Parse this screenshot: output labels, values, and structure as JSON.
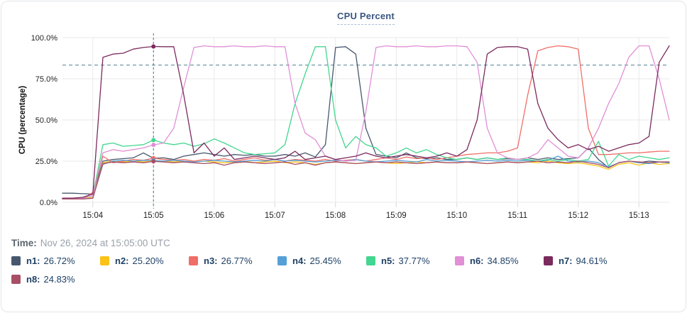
{
  "card": {
    "title": "CPU Percent"
  },
  "time_row": {
    "label": "Time:",
    "value": "Nov 26, 2024 at 15:05:00 UTC"
  },
  "colors": {
    "grid": "#e9e9e9",
    "tick_stub": "#d8d8d8",
    "crosshair": "#4d7d92",
    "threshold": "#4d7d92",
    "axis_text": "#1f1f1f",
    "card_border": "#e3e5e9"
  },
  "chart_data": {
    "type": "line",
    "title": "CPU Percent",
    "xlabel": "",
    "ylabel": "CPU (percentage)",
    "ylim": [
      0,
      100
    ],
    "grid": true,
    "legend_position": "bottom",
    "x_start": "15:03:30",
    "x_step_seconds": 10,
    "x_tick_labels": [
      "15:04",
      "15:05",
      "15:06",
      "15:07",
      "15:08",
      "15:09",
      "15:10",
      "15:11",
      "15:12",
      "15:13"
    ],
    "x_tick_indices": [
      3,
      9,
      15,
      21,
      27,
      33,
      39,
      45,
      51,
      57
    ],
    "y_tick_values": [
      0,
      25,
      50,
      75,
      100
    ],
    "y_tick_labels": [
      "0.0%",
      "25.0%",
      "50.0%",
      "75.0%",
      "100.0%"
    ],
    "threshold_value": 83.3,
    "crosshair_time": "15:05:00",
    "crosshair_index": 9,
    "series": [
      {
        "name": "n1",
        "color": "#47586e",
        "legend_value": "26.72%",
        "values": [
          5.5,
          5.5,
          5.2,
          5.0,
          25.0,
          26.0,
          26.5,
          27.0,
          30.0,
          26.72,
          27.0,
          26.0,
          28.0,
          29.0,
          30.0,
          29.0,
          28.0,
          29.0,
          28.5,
          29.0,
          28.0,
          28.0,
          29.0,
          28.0,
          30.0,
          27.5,
          35.0,
          94.0,
          94.5,
          90.0,
          45.0,
          29.0,
          28.0,
          27.0,
          30.0,
          27.0,
          26.5,
          27.0,
          26.0,
          26.0,
          27.0,
          26.0,
          27.0,
          26.0,
          26.5,
          26.0,
          27.0,
          26.0,
          27.0,
          26.0,
          26.5,
          27.0,
          33.0,
          26.0,
          21.0,
          24.0,
          25.0,
          24.0,
          25.0,
          24.5,
          24.0
        ]
      },
      {
        "name": "n2",
        "color": "#fbc318",
        "legend_value": "25.20%",
        "values": [
          2.0,
          2.0,
          2.2,
          3.0,
          24.0,
          25.0,
          24.5,
          25.0,
          24.5,
          25.2,
          25.0,
          24.5,
          25.0,
          24.5,
          25.0,
          24.5,
          24.0,
          24.5,
          25.0,
          24.0,
          24.5,
          25.0,
          24.0,
          24.5,
          24.0,
          23.0,
          24.0,
          24.5,
          24.0,
          23.5,
          24.0,
          24.5,
          24.0,
          23.5,
          24.0,
          24.5,
          24.0,
          24.5,
          24.0,
          24.0,
          24.5,
          24.0,
          23.5,
          24.0,
          24.5,
          24.0,
          24.5,
          24.0,
          25.0,
          24.0,
          23.5,
          24.0,
          23.0,
          22.0,
          20.0,
          23.0,
          24.0,
          22.5,
          24.0,
          23.0,
          23.5
        ]
      },
      {
        "name": "n3",
        "color": "#ef6e67",
        "legend_value": "26.77%",
        "values": [
          2.0,
          2.5,
          2.0,
          6.0,
          28.0,
          24.0,
          25.0,
          26.0,
          25.5,
          26.77,
          26.0,
          25.5,
          26.0,
          25.0,
          26.0,
          25.5,
          26.5,
          25.0,
          26.0,
          27.0,
          25.5,
          26.0,
          25.0,
          26.0,
          25.5,
          25.0,
          26.0,
          25.0,
          25.5,
          26.0,
          25.0,
          26.0,
          27.0,
          26.0,
          27.5,
          26.5,
          27.0,
          26.0,
          27.0,
          28.0,
          29.0,
          29.5,
          30.0,
          30.0,
          31.0,
          33.0,
          65.0,
          92.0,
          94.0,
          95.0,
          94.5,
          93.0,
          45.0,
          29.0,
          29.0,
          29.5,
          30.0,
          30.0,
          30.5,
          31.0,
          31.0
        ]
      },
      {
        "name": "n4",
        "color": "#55a0d7",
        "legend_value": "25.45%",
        "values": [
          2.0,
          2.0,
          2.0,
          2.5,
          23.0,
          25.0,
          25.5,
          25.0,
          25.5,
          25.45,
          25.0,
          25.5,
          25.0,
          24.5,
          25.0,
          25.5,
          25.0,
          24.5,
          25.0,
          25.5,
          25.0,
          26.0,
          25.0,
          25.5,
          25.0,
          24.5,
          25.0,
          25.5,
          25.0,
          26.0,
          25.0,
          24.5,
          25.0,
          25.5,
          25.0,
          24.5,
          26.0,
          25.0,
          25.5,
          25.0,
          24.5,
          25.0,
          25.5,
          25.0,
          25.5,
          25.0,
          25.5,
          25.0,
          25.5,
          28.0,
          25.0,
          24.5,
          25.0,
          24.0,
          21.5,
          24.0,
          25.0,
          24.0,
          23.5,
          24.5,
          24.0
        ]
      },
      {
        "name": "n5",
        "color": "#43d690",
        "legend_value": "37.77%",
        "values": [
          2.0,
          2.0,
          2.5,
          4.0,
          35.0,
          36.0,
          34.0,
          34.5,
          35.0,
          37.77,
          36.0,
          35.0,
          36.0,
          34.0,
          35.5,
          38.5,
          36.0,
          33.0,
          30.0,
          29.0,
          29.5,
          30.0,
          35.0,
          60.0,
          78.0,
          94.5,
          94.5,
          50.0,
          33.0,
          40.0,
          35.0,
          33.0,
          28.0,
          30.0,
          33.0,
          30.0,
          32.0,
          29.0,
          27.0,
          26.0,
          27.0,
          26.0,
          27.0,
          26.0,
          27.0,
          26.0,
          26.0,
          25.0,
          26.0,
          25.0,
          26.0,
          25.0,
          26.0,
          37.0,
          22.0,
          29.0,
          26.0,
          28.0,
          27.0,
          26.0,
          27.0
        ]
      },
      {
        "name": "n6",
        "color": "#e18fd6",
        "legend_value": "34.85%",
        "values": [
          2.0,
          2.0,
          2.5,
          4.0,
          30.0,
          32.0,
          31.0,
          32.0,
          33.0,
          34.85,
          36.0,
          45.0,
          70.0,
          94.0,
          95.0,
          94.5,
          94.5,
          95.0,
          94.5,
          94.5,
          95.0,
          94.5,
          94.5,
          60.0,
          42.0,
          38.0,
          28.0,
          26.0,
          25.0,
          25.5,
          55.0,
          94.0,
          95.0,
          94.5,
          94.5,
          95.0,
          94.5,
          94.5,
          95.0,
          95.0,
          94.5,
          85.0,
          45.0,
          30.0,
          27.0,
          26.0,
          27.0,
          30.0,
          38.0,
          33.0,
          28.0,
          27.0,
          33.0,
          45.0,
          60.0,
          72.0,
          88.0,
          95.0,
          95.0,
          75.0,
          50.0
        ]
      },
      {
        "name": "n7",
        "color": "#7b2a5e",
        "legend_value": "94.61%",
        "values": [
          2.5,
          2.5,
          3.0,
          5.0,
          88.0,
          90.0,
          90.5,
          93.0,
          94.0,
          94.61,
          94.5,
          94.5,
          65.0,
          30.0,
          36.0,
          28.0,
          33.0,
          26.0,
          27.0,
          28.0,
          27.0,
          26.0,
          27.0,
          31.0,
          26.0,
          27.0,
          28.0,
          26.0,
          27.0,
          28.0,
          30.0,
          28.0,
          27.0,
          28.0,
          29.0,
          28.0,
          27.0,
          28.0,
          30.0,
          28.0,
          32.0,
          50.0,
          90.0,
          94.0,
          94.5,
          94.5,
          93.0,
          60.0,
          45.0,
          38.0,
          33.0,
          35.0,
          32.0,
          34.0,
          31.0,
          33.0,
          35.0,
          36.0,
          40.0,
          85.0,
          95.0
        ]
      },
      {
        "name": "n8",
        "color": "#a84f66",
        "legend_value": "24.83%",
        "values": [
          2.0,
          2.0,
          2.0,
          2.5,
          23.5,
          24.5,
          24.0,
          24.5,
          24.0,
          24.83,
          24.5,
          24.0,
          24.5,
          24.0,
          23.5,
          24.0,
          22.5,
          24.0,
          24.5,
          24.0,
          23.5,
          24.0,
          24.5,
          23.0,
          24.0,
          22.5,
          24.0,
          24.5,
          24.0,
          23.5,
          24.0,
          24.5,
          24.0,
          24.5,
          24.0,
          23.5,
          24.0,
          24.5,
          24.0,
          24.0,
          24.5,
          24.0,
          23.5,
          24.0,
          24.5,
          24.0,
          24.5,
          25.0,
          24.0,
          24.5,
          24.0,
          25.0,
          24.0,
          23.0,
          21.0,
          24.0,
          25.0,
          24.5,
          24.0,
          24.5,
          24.5
        ]
      }
    ]
  }
}
